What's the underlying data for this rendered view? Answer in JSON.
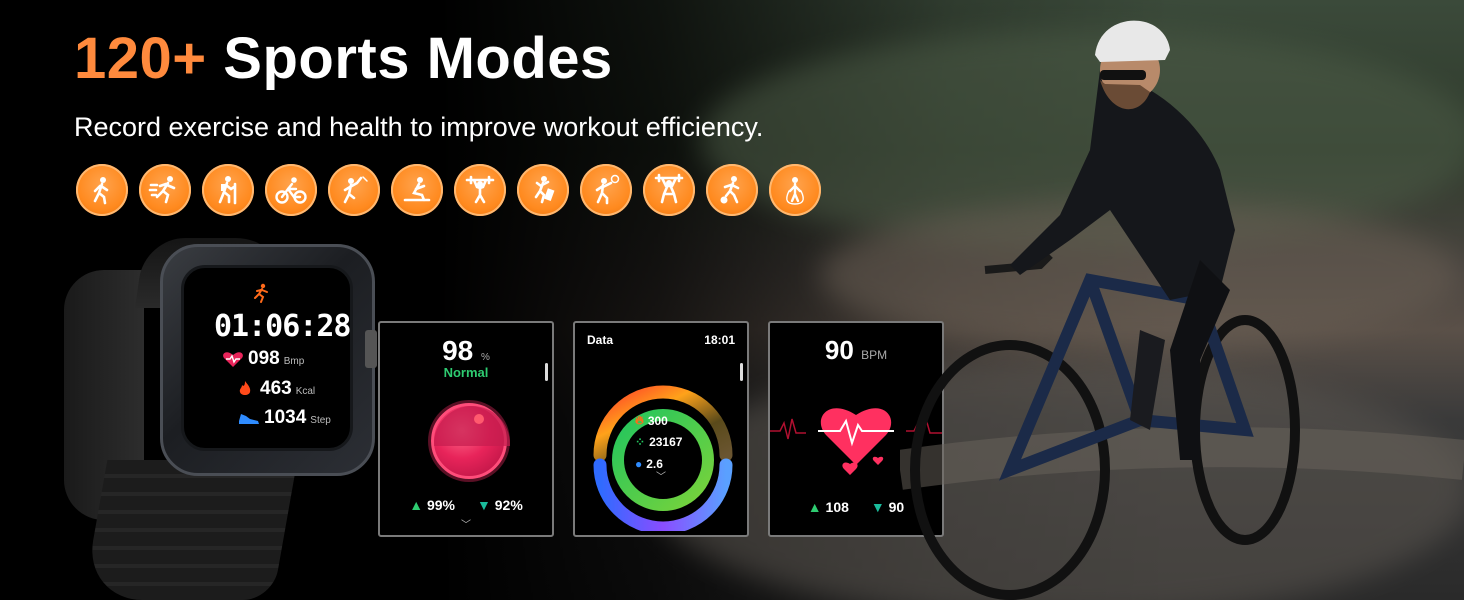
{
  "headline": {
    "accent": "120+",
    "rest": "Sports Modes"
  },
  "subtitle": "Record exercise and health to improve workout efficiency.",
  "sport_icons": [
    "walking-icon",
    "running-icon",
    "hiking-icon",
    "cycling-icon",
    "badminton-icon",
    "rowing-icon",
    "weightlifting-icon",
    "climbing-icon",
    "volleyball-icon",
    "strength-icon",
    "football-icon",
    "jump-rope-icon"
  ],
  "colors": {
    "accent": "#ff8a3d",
    "icon_bg": "#ff8a1f",
    "spo2_green": "#2ecc71",
    "heart_red": "#e8245a"
  },
  "watch": {
    "time": "01:06:28",
    "heart": {
      "value": "098",
      "unit": "Bmp"
    },
    "calories": {
      "value": "463",
      "unit": "Kcal"
    },
    "steps": {
      "value": "1034",
      "unit": "Step"
    }
  },
  "spo2_panel": {
    "value": "98",
    "unit": "%",
    "status": "Normal",
    "max": "99%",
    "min": "92%"
  },
  "data_panel": {
    "title": "Data",
    "time": "18:01",
    "calories": "300",
    "steps": "23167",
    "distance": "2.6"
  },
  "heart_panel": {
    "value": "90",
    "unit": "BPM",
    "max": "108",
    "min": "90"
  }
}
